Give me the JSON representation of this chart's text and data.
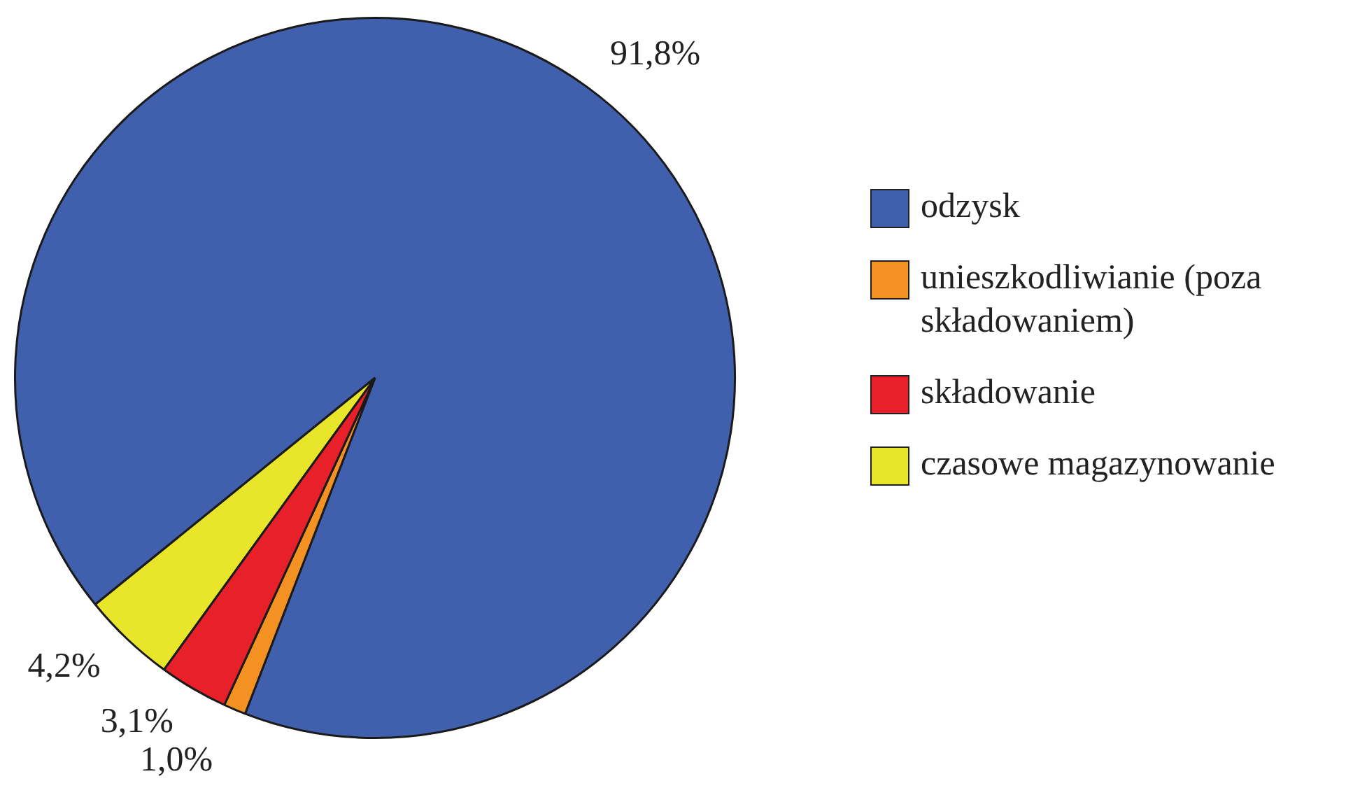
{
  "chart_data": {
    "type": "pie",
    "categories": [
      "odzysk",
      "unieszkodliwianie (poza składowaniem)",
      "składowanie",
      "czasowe magazynowanie"
    ],
    "values": [
      91.8,
      1.0,
      3.1,
      4.2
    ],
    "colors": [
      "#4060ad",
      "#f39222",
      "#e8202a",
      "#e8e52a"
    ],
    "value_labels": [
      "91,8%",
      "1,0%",
      "3,1%",
      "4,2%"
    ],
    "legend": "right"
  }
}
